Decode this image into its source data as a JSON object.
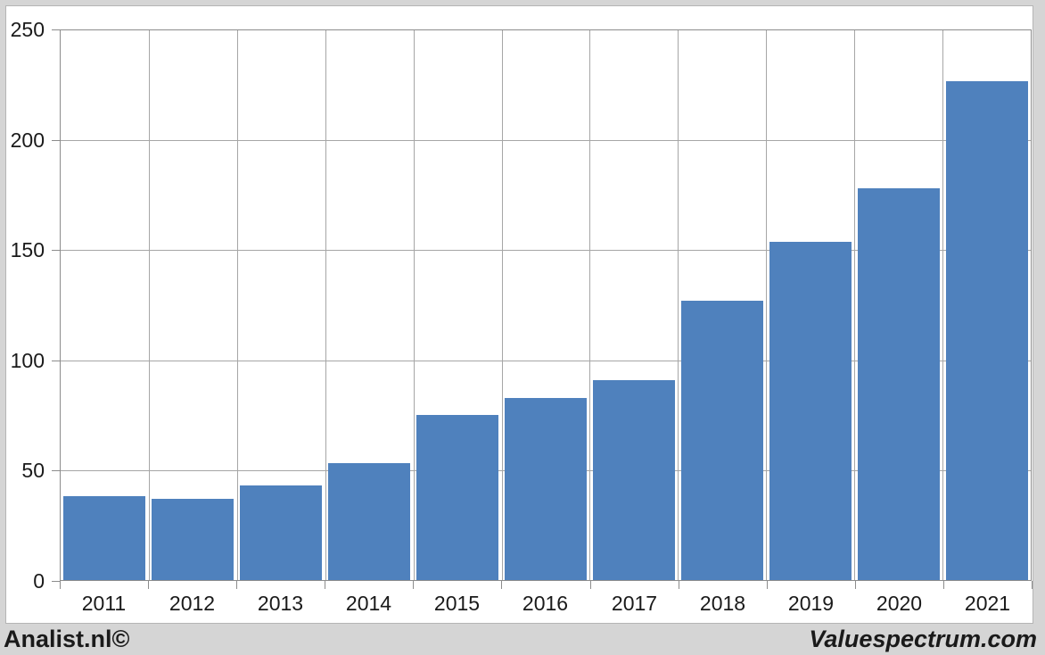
{
  "page": {
    "background": "#d5d5d5",
    "panel_background": "#ffffff"
  },
  "branding": {
    "left": "Analist.nl©",
    "right": "Valuespectrum.com"
  },
  "chart_data": {
    "type": "bar",
    "title": "",
    "xlabel": "",
    "ylabel": "",
    "categories": [
      "2011",
      "2012",
      "2013",
      "2014",
      "2015",
      "2016",
      "2017",
      "2018",
      "2019",
      "2020",
      "2021"
    ],
    "values": [
      38,
      37,
      43,
      53,
      75,
      83,
      91,
      127,
      154,
      178,
      227
    ],
    "ylim": [
      0,
      250
    ],
    "yticks": [
      0,
      50,
      100,
      150,
      200,
      250
    ],
    "grid": true,
    "legend_position": "none",
    "bar_color": "#4f81bd",
    "gridline_color": "#a6a6a6",
    "axis_color": "#8c8c8c",
    "label_color": "#1a1a1a"
  }
}
